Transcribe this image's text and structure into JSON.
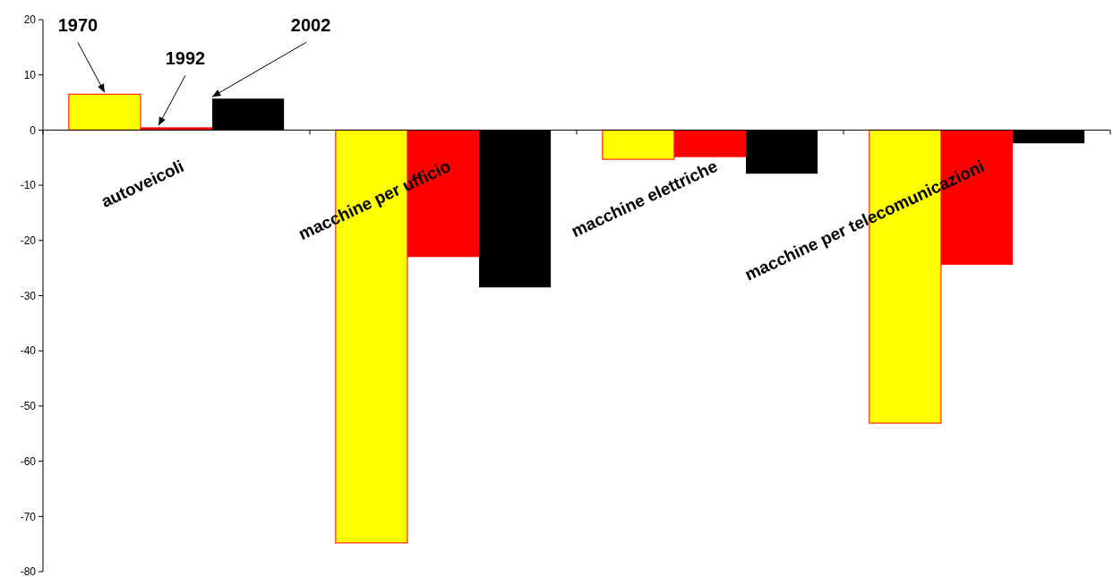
{
  "chart_data": {
    "type": "bar",
    "categories": [
      "autoveicoli",
      "macchine per ufficio",
      "macchine elettriche",
      "macchine per telecomunicazioni"
    ],
    "series": [
      {
        "name": "1970",
        "color": "#ffff00",
        "values": [
          6.5,
          -74.8,
          -5.3,
          -53.1
        ]
      },
      {
        "name": "1992",
        "color": "#ff0000",
        "values": [
          0.5,
          -23.0,
          -4.9,
          -24.4
        ]
      },
      {
        "name": "2002",
        "color": "#000000",
        "values": [
          5.7,
          -28.5,
          -7.9,
          -2.4
        ]
      }
    ],
    "ylim": [
      -80,
      20
    ],
    "yticks": [
      -80,
      -70,
      -60,
      -50,
      -40,
      -30,
      -20,
      -10,
      0,
      10,
      20
    ],
    "grid": false
  }
}
